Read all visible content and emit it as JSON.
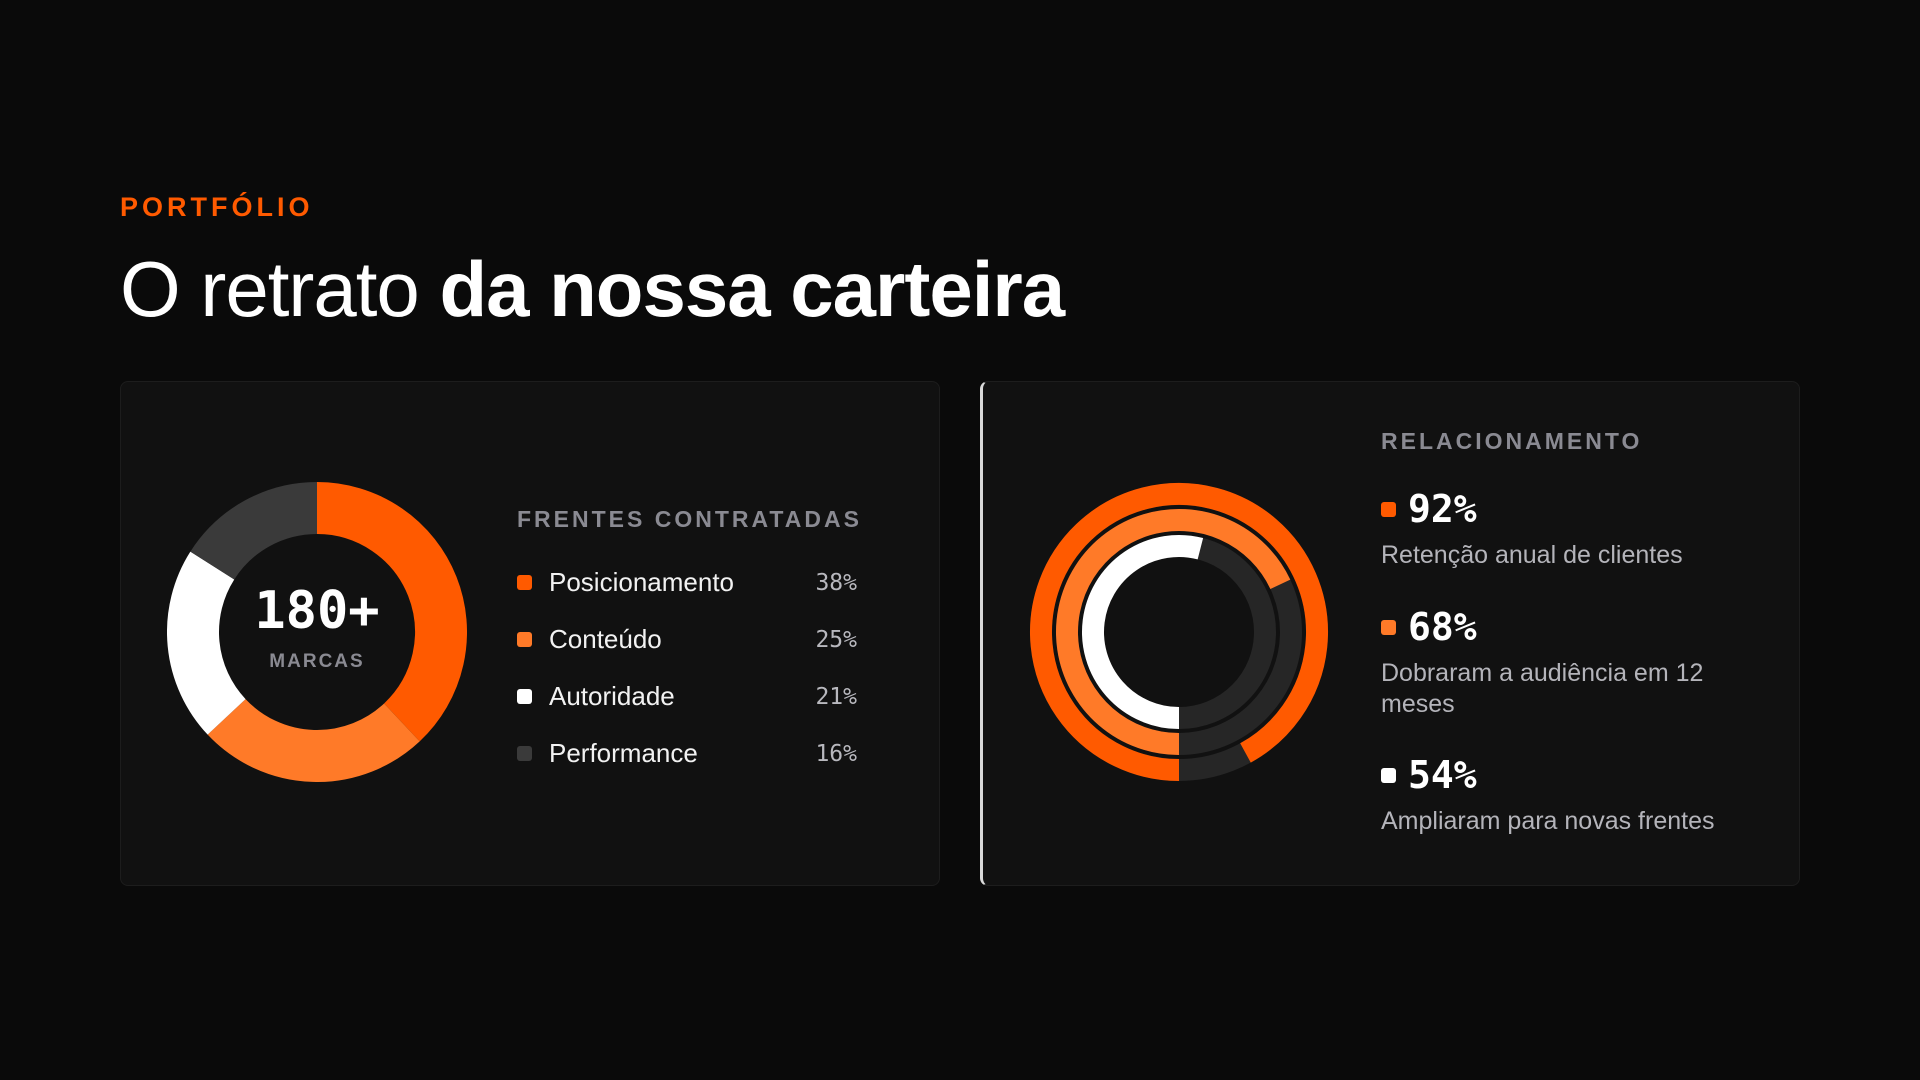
{
  "header": {
    "eyebrow": "PORTFÓLIO",
    "title_light": "O retrato ",
    "title_bold": "da nossa carteira"
  },
  "colors": {
    "orange": "#ff5a00",
    "orange_light": "#ff7a28",
    "white": "#ffffff",
    "gray": "#3a3a3a",
    "track": "#262626"
  },
  "portfolio": {
    "center_value": "180+",
    "center_label": "MARCAS",
    "legend_title": "FRENTES CONTRATADAS"
  },
  "relationship": {
    "title": "RELACIONAMENTO",
    "stats": [
      {
        "value": "92%",
        "label": "Retenção anual de clientes",
        "color": "#ff5a00"
      },
      {
        "value": "68%",
        "label": "Dobraram a audiência em 12 meses",
        "color": "#ff7a28"
      },
      {
        "value": "54%",
        "label": "Ampliaram para novas frentes",
        "color": "#ffffff"
      }
    ]
  },
  "chart_data": [
    {
      "type": "pie",
      "donut": true,
      "categories": [
        "Posicionamento",
        "Conteúdo",
        "Autoridade",
        "Performance"
      ],
      "values": [
        38,
        25,
        21,
        16
      ],
      "value_labels": [
        "38%",
        "25%",
        "21%",
        "16%"
      ],
      "colors": [
        "#ff5a00",
        "#ff7a28",
        "#ffffff",
        "#3a3a3a"
      ],
      "title": "FRENTES CONTRATADAS"
    },
    {
      "type": "pie",
      "variant": "radial-rings",
      "categories": [
        "Retenção anual de clientes",
        "Dobraram a audiência em 12 meses",
        "Ampliaram para novas frentes"
      ],
      "values": [
        92,
        68,
        54
      ],
      "value_labels": [
        "92%",
        "68%",
        "54%"
      ],
      "colors": [
        "#ff5a00",
        "#ff7a28",
        "#ffffff"
      ],
      "max": 100,
      "title": "RELACIONAMENTO"
    }
  ]
}
